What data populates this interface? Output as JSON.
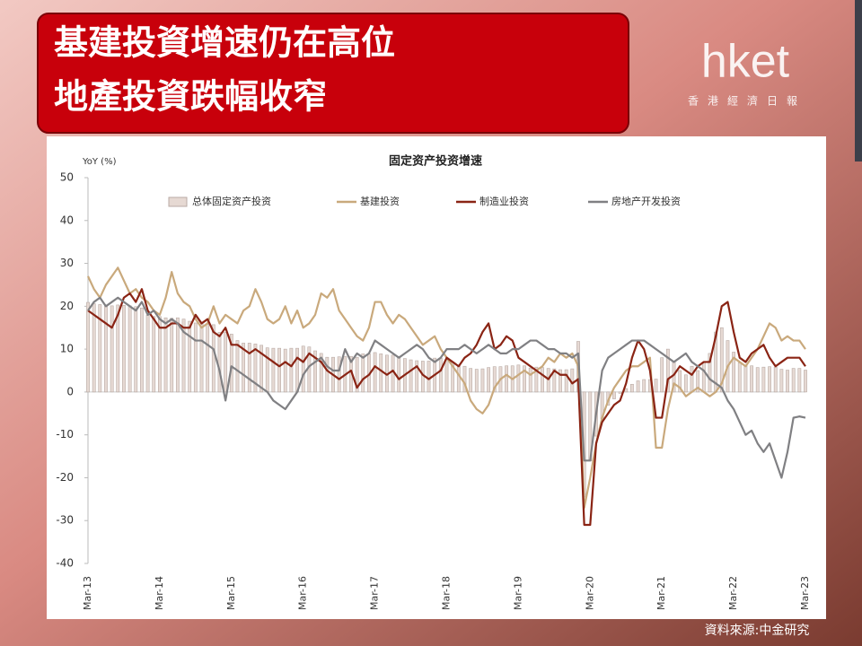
{
  "headline": [
    "基建投資增速仍在高位",
    "地產投資跌幅收窄"
  ],
  "logo": {
    "name": "hket",
    "subtitle": "香港經濟日報"
  },
  "source": "資料來源:中金研究",
  "chart_data": {
    "type": "bar-line",
    "title": "固定资产投资增速",
    "y_label": "YoY (%)",
    "categories": [
      "Mar-13",
      null,
      null,
      null,
      null,
      null,
      null,
      null,
      null,
      null,
      null,
      null,
      "Mar-14",
      null,
      null,
      null,
      null,
      null,
      null,
      null,
      null,
      null,
      null,
      null,
      "Mar-15",
      null,
      null,
      null,
      null,
      null,
      null,
      null,
      null,
      null,
      null,
      null,
      "Mar-16",
      null,
      null,
      null,
      null,
      null,
      null,
      null,
      null,
      null,
      null,
      null,
      "Mar-17",
      null,
      null,
      null,
      null,
      null,
      null,
      null,
      null,
      null,
      null,
      null,
      "Mar-18",
      null,
      null,
      null,
      null,
      null,
      null,
      null,
      null,
      null,
      null,
      null,
      "Mar-19",
      null,
      null,
      null,
      null,
      null,
      null,
      null,
      null,
      null,
      null,
      null,
      "Mar-20",
      null,
      null,
      null,
      null,
      null,
      null,
      null,
      null,
      null,
      null,
      null,
      "Mar-21",
      null,
      null,
      null,
      null,
      null,
      null,
      null,
      null,
      null,
      null,
      null,
      "Mar-22",
      null,
      null,
      null,
      null,
      null,
      null,
      null,
      null,
      null,
      null,
      null,
      "Mar-23"
    ],
    "series": [
      {
        "name": "总体固定资产投资",
        "kind": "bar",
        "color": "#e6d9d3",
        "values": [
          20.9,
          20.6,
          20.4,
          20.1,
          20.1,
          20.3,
          20.2,
          20.1,
          19.9,
          19.6,
          17.9,
          17.6,
          17.6,
          17.3,
          17.2,
          17.3,
          17,
          16.5,
          16.1,
          15.9,
          15.8,
          15.7,
          13.9,
          13.9,
          13.5,
          12,
          11.4,
          11.4,
          11.2,
          10.9,
          10.3,
          10.2,
          10.2,
          10,
          10.2,
          10.2,
          10.7,
          10.5,
          9.6,
          9,
          8.1,
          8.1,
          8.2,
          8.3,
          8.3,
          8.1,
          8.9,
          8.9,
          9.2,
          8.9,
          8.6,
          8.6,
          8.3,
          7.8,
          7.5,
          7.3,
          7.2,
          7.2,
          7.9,
          7.9,
          7.5,
          7,
          6.1,
          6,
          5.5,
          5.3,
          5.4,
          5.7,
          5.9,
          5.9,
          6.1,
          6.1,
          6.3,
          6.1,
          5.6,
          5.8,
          5.7,
          5.5,
          5.4,
          5.2,
          5.2,
          5.4,
          11.8,
          -24.5,
          -16.1,
          -10.3,
          -6.3,
          -3.1,
          -1.6,
          -0.3,
          0.8,
          1.8,
          2.6,
          2.9,
          2.9,
          3,
          8,
          10,
          7,
          5,
          4,
          6,
          5,
          7,
          9,
          14,
          15,
          12,
          9.3,
          6.8,
          6.2,
          6.1,
          5.7,
          5.8,
          5.9,
          5.8,
          5.3,
          5.1,
          5.5,
          5.5,
          5.1
        ]
      },
      {
        "name": "基建投资",
        "kind": "line",
        "color": "#c9a97c",
        "values": [
          27,
          24,
          22,
          25,
          27,
          29,
          26,
          23,
          24,
          22,
          21,
          19,
          18,
          22,
          28,
          23,
          21,
          20,
          17,
          15,
          16,
          20,
          16,
          18,
          17,
          16,
          19,
          20,
          24,
          21,
          17,
          16,
          17,
          20,
          16,
          19,
          15,
          16,
          18,
          23,
          22,
          24,
          19,
          17,
          15,
          13,
          12,
          15,
          21,
          21,
          18,
          16,
          18,
          17,
          15,
          13,
          11,
          12,
          13,
          10,
          8,
          6,
          4,
          2,
          -2,
          -4,
          -5,
          -3,
          1,
          3,
          4,
          3,
          4,
          5,
          4,
          5,
          6,
          8,
          7,
          9,
          8,
          9,
          6,
          -27,
          -20,
          -12,
          -6,
          -2,
          1,
          3,
          5,
          6,
          6,
          7,
          8,
          -13,
          -13,
          -4,
          2,
          1,
          -1,
          0,
          1,
          0,
          -1,
          0,
          2,
          6,
          8,
          7,
          6,
          8,
          10,
          13,
          16,
          15,
          12,
          13,
          12,
          12,
          10
        ]
      },
      {
        "name": "制造业投资",
        "kind": "line",
        "color": "#8a2414",
        "values": [
          19,
          18,
          17,
          16,
          15,
          18,
          22,
          23,
          21,
          24,
          19,
          17,
          15,
          15,
          16,
          16,
          15,
          15,
          18,
          16,
          17,
          14,
          13,
          15,
          11,
          11,
          10,
          9,
          10,
          9,
          8,
          7,
          6,
          7,
          6,
          8,
          7,
          9,
          8,
          7,
          5,
          4,
          3,
          4,
          5,
          1,
          3,
          4,
          6,
          5,
          4,
          5,
          3,
          4,
          5,
          6,
          4,
          3,
          4,
          5,
          8,
          7,
          6,
          8,
          9,
          11,
          14,
          16,
          10,
          11,
          13,
          12,
          8,
          7,
          6,
          5,
          4,
          3,
          5,
          4,
          4,
          2,
          3,
          -31,
          -31,
          -12,
          -7,
          -5,
          -3,
          -2,
          2,
          8,
          12,
          10,
          5,
          -6,
          -6,
          3,
          4,
          6,
          5,
          4,
          6,
          7,
          7,
          13,
          20,
          21,
          14,
          8,
          7,
          9,
          10,
          11,
          8,
          6,
          7,
          8,
          8,
          8,
          6
        ]
      },
      {
        "name": "房地产开发投资",
        "kind": "line",
        "color": "#808083",
        "values": [
          19,
          21,
          22,
          20,
          21,
          22,
          21,
          20,
          19,
          21,
          18,
          19,
          17,
          16,
          17,
          16,
          14,
          13,
          12,
          12,
          11,
          10,
          5,
          -2,
          6,
          5,
          4,
          3,
          2,
          1,
          0,
          -2,
          -3,
          -4,
          -2,
          0,
          4,
          6,
          7,
          8,
          6,
          5,
          5,
          10,
          7,
          9,
          8,
          9,
          12,
          11,
          10,
          9,
          8,
          9,
          10,
          11,
          10,
          8,
          7,
          8,
          10,
          10,
          10,
          11,
          10,
          9,
          10,
          11,
          10,
          9,
          9,
          10,
          10,
          11,
          12,
          12,
          11,
          10,
          10,
          9,
          9,
          8,
          9,
          -16,
          -16,
          -5,
          5,
          8,
          9,
          10,
          11,
          12,
          12,
          12,
          11,
          10,
          9,
          8,
          7,
          8,
          9,
          7,
          6,
          5,
          3,
          2,
          1,
          -2,
          -4,
          -7,
          -10,
          -9,
          -12,
          -14,
          -12,
          -16,
          -20,
          -14,
          -6,
          -5.7,
          -6
        ]
      }
    ],
    "ylim": [
      -40,
      50
    ],
    "yticks": [
      -40,
      -30,
      -20,
      -10,
      0,
      10,
      20,
      30,
      40,
      50
    ],
    "grid": false,
    "legend": "top"
  }
}
